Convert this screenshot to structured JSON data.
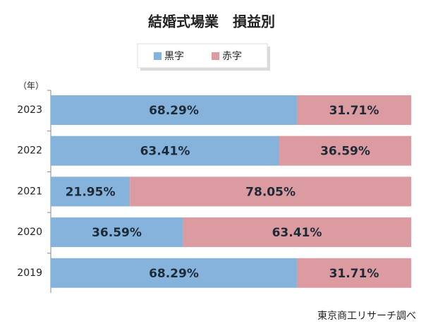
{
  "chart_data": {
    "type": "stacked-bar-horizontal",
    "title": "結婚式場業　損益別",
    "y_axis_label": "（年）",
    "source": "東京商工リサーチ調べ",
    "categories": [
      "2023",
      "2022",
      "2021",
      "2020",
      "2019"
    ],
    "xlim": [
      0,
      100
    ],
    "series": [
      {
        "name": "黒字",
        "color": "#86b3dc",
        "values": [
          68.29,
          63.41,
          21.95,
          36.59,
          68.29
        ],
        "value_labels": [
          "68.29%",
          "63.41%",
          "21.95%",
          "36.59%",
          "68.29%"
        ]
      },
      {
        "name": "赤字",
        "color": "#dc9ba0",
        "values": [
          31.71,
          36.59,
          78.05,
          63.41,
          31.71
        ],
        "value_labels": [
          "31.71%",
          "36.59%",
          "78.05%",
          "63.41%",
          "31.71%"
        ]
      }
    ],
    "legend": "top"
  }
}
